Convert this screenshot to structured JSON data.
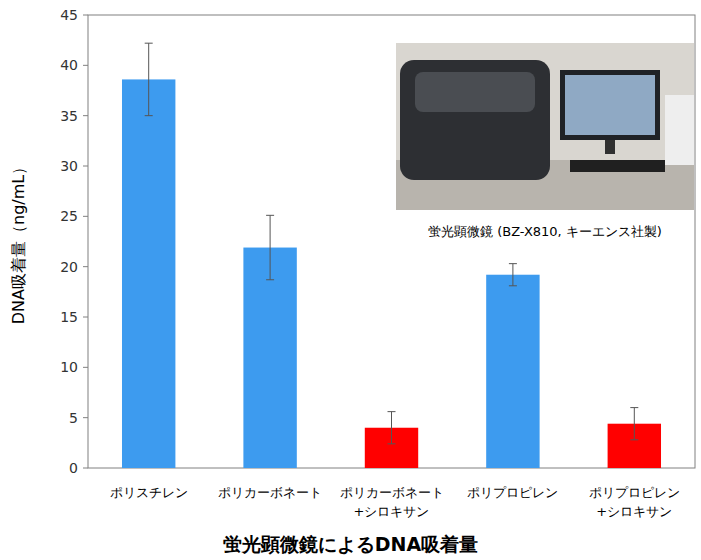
{
  "chart_data": {
    "type": "bar",
    "title": "蛍光顕微鏡によるDNA吸着量",
    "y_label": "DNA吸着量（ng/mL）",
    "annotation": "蛍光顕微鏡 (BZ-X810, キーエンス社製)",
    "categories": [
      "ポリスチレン",
      "ポリカーボネート",
      "ポリカーボネート\n+シロキサン",
      "ポリプロピレン",
      "ポリプロピレン\n+シロキサン"
    ],
    "values": [
      38.6,
      21.9,
      4.0,
      19.2,
      4.4
    ],
    "errors": [
      3.6,
      3.2,
      1.6,
      1.1,
      1.6
    ],
    "colors": [
      "#3d9bef",
      "#3d9bef",
      "#ff0000",
      "#3d9bef",
      "#ff0000"
    ],
    "ylim": [
      0,
      45
    ],
    "yticks": [
      0,
      5,
      10,
      15,
      20,
      25,
      30,
      35,
      40,
      45
    ],
    "grid": false
  }
}
